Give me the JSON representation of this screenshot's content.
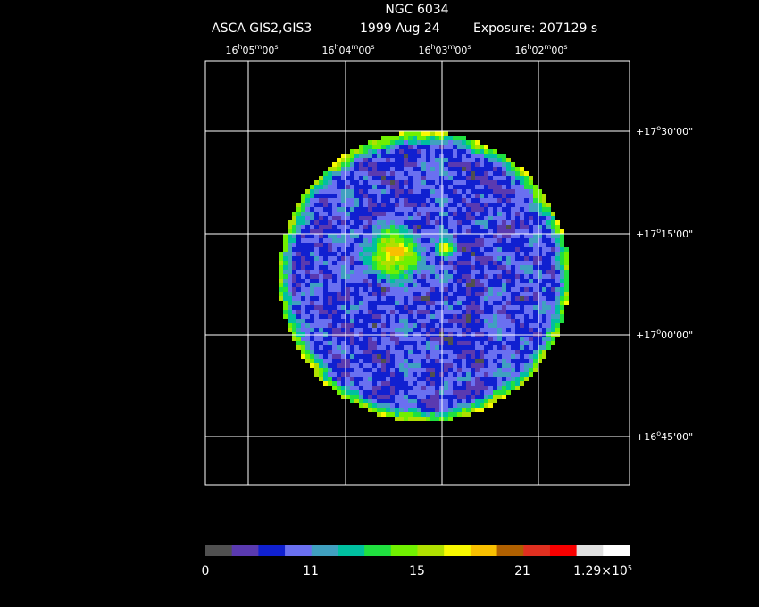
{
  "header": {
    "title": "NGC 6034",
    "instrument": "ASCA GIS2,GIS3",
    "date": "1999 Aug 24",
    "exposure": "Exposure: 207129 s"
  },
  "ra_labels": [
    [
      "16",
      "h",
      "05",
      "m",
      "00",
      "s"
    ],
    [
      "16",
      "h",
      "04",
      "m",
      "00",
      "s"
    ],
    [
      "16",
      "h",
      "03",
      "m",
      "00",
      "s"
    ],
    [
      "16",
      "h",
      "02",
      "m",
      "00",
      "s"
    ]
  ],
  "dec_labels": [
    [
      "+17",
      "o",
      "30'00\""
    ],
    [
      "+17",
      "o",
      "15'00\""
    ],
    [
      "+17",
      "o",
      "00'00\""
    ],
    [
      "+16",
      "o",
      "45'00\""
    ]
  ],
  "colorbar_labels": [
    [
      "0"
    ],
    [
      "11"
    ],
    [
      "15"
    ],
    [
      "21"
    ],
    [
      "1.29×10",
      "5"
    ]
  ]
}
